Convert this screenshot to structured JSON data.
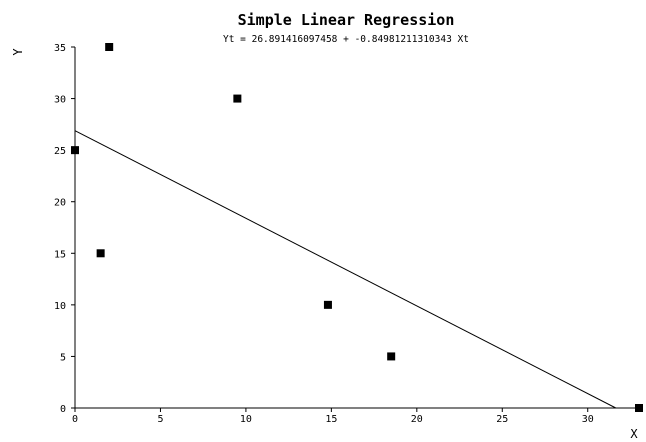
{
  "chart_data": {
    "type": "scatter",
    "title": "Simple Linear Regression",
    "subtitle": "Yt = 26.891416097458 + -0.84981211310343 Xt",
    "xlabel": "X",
    "ylabel": "Y",
    "xlim": [
      0,
      33
    ],
    "ylim": [
      0,
      35
    ],
    "x_ticks": [
      0,
      5,
      10,
      15,
      20,
      25,
      30
    ],
    "y_ticks": [
      0,
      5,
      10,
      15,
      20,
      25,
      30,
      35
    ],
    "grid": false,
    "legend": "none",
    "points": [
      {
        "x": 0,
        "y": 25
      },
      {
        "x": 1.5,
        "y": 15
      },
      {
        "x": 2,
        "y": 35
      },
      {
        "x": 9.5,
        "y": 30
      },
      {
        "x": 14.8,
        "y": 10
      },
      {
        "x": 18.5,
        "y": 5
      },
      {
        "x": 33,
        "y": 0
      }
    ],
    "regression": {
      "intercept": 26.891416097458,
      "slope": -0.84981211310343
    },
    "colors": {
      "marker": "#000000",
      "line": "#000000",
      "axis": "#000000"
    }
  }
}
